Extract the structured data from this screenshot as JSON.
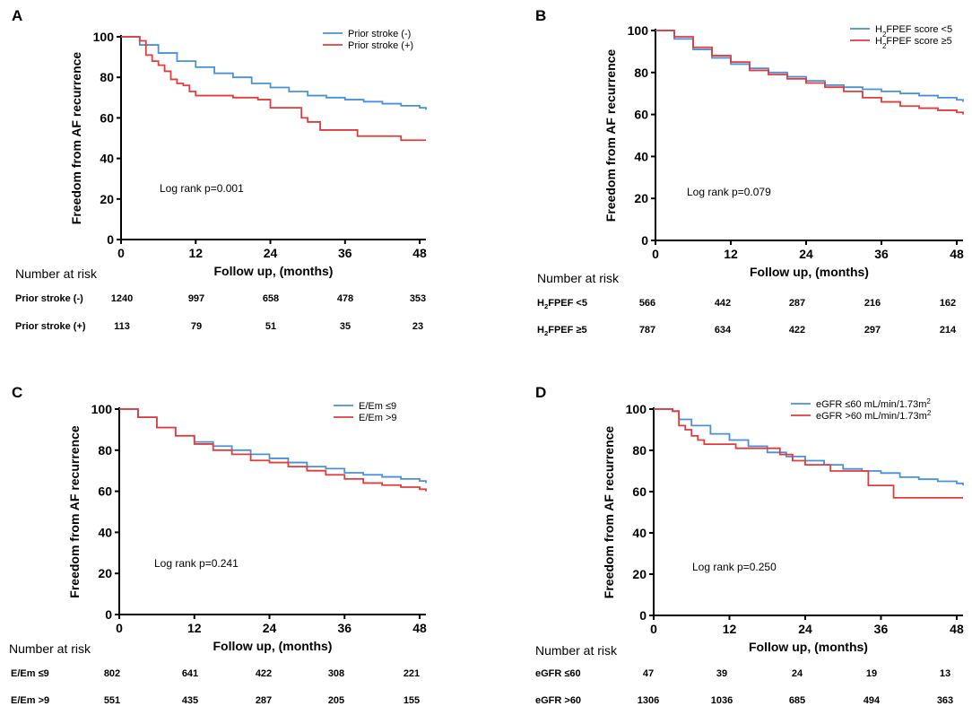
{
  "chart_data": [
    {
      "type": "line",
      "panel": "A",
      "title": "",
      "xlabel": "Follow up, (months)",
      "ylabel": "Freedom from AF recurrence",
      "xlim": [
        0,
        49
      ],
      "ylim": [
        0,
        100
      ],
      "xticks": [
        0,
        12,
        24,
        36,
        48
      ],
      "yticks": [
        0,
        20,
        40,
        60,
        80,
        100
      ],
      "legend_position": "top-right",
      "annotation": "Log rank p=0.001",
      "series": [
        {
          "name": "Prior stroke (-)",
          "color": "#4a90d9",
          "x": [
            0,
            3,
            6,
            9,
            12,
            15,
            18,
            21,
            24,
            27,
            30,
            33,
            36,
            39,
            42,
            45,
            48,
            49
          ],
          "y": [
            100,
            96,
            92,
            88,
            85,
            82,
            80,
            77,
            75,
            73,
            71,
            70,
            69,
            68,
            67,
            66,
            65,
            64
          ]
        },
        {
          "name": "Prior stroke (+)",
          "color": "#e03c3c",
          "x": [
            0,
            3,
            4,
            5,
            6,
            7,
            8,
            9,
            10,
            11,
            12,
            18,
            22,
            24,
            28,
            29,
            30,
            32,
            36,
            38,
            40,
            45,
            49
          ],
          "y": [
            100,
            98,
            91,
            88,
            86,
            83,
            79,
            77,
            76,
            73,
            71,
            70,
            69,
            65,
            65,
            60,
            58,
            54,
            54,
            51,
            51,
            49,
            49
          ]
        }
      ],
      "risk_header": "Number at risk",
      "risk_rows": [
        {
          "label": "Prior stroke (-)",
          "values": [
            "1240",
            "997",
            "658",
            "478",
            "353"
          ]
        },
        {
          "label": "Prior stroke (+)",
          "values": [
            "113",
            "79",
            "51",
            "35",
            "23"
          ]
        }
      ]
    },
    {
      "type": "line",
      "panel": "B",
      "title": "",
      "xlabel": "Follow up, (months)",
      "ylabel": "Freedom from AF recurrence",
      "xlim": [
        0,
        49
      ],
      "ylim": [
        0,
        100
      ],
      "xticks": [
        0,
        12,
        24,
        36,
        48
      ],
      "yticks": [
        0,
        20,
        40,
        60,
        80,
        100
      ],
      "legend_position": "top-right",
      "annotation": "Log rank p=0.079",
      "series": [
        {
          "name": "H2FPEF score <5",
          "color": "#4a90d9",
          "x": [
            0,
            3,
            6,
            9,
            12,
            15,
            18,
            21,
            24,
            27,
            30,
            33,
            36,
            39,
            42,
            45,
            48,
            49
          ],
          "y": [
            100,
            96,
            91,
            87,
            84,
            82,
            80,
            78,
            76,
            74,
            73,
            72,
            71,
            70,
            69,
            68,
            67,
            66
          ]
        },
        {
          "name": "H2FPEF score ≥5",
          "color": "#e03c3c",
          "x": [
            0,
            3,
            6,
            9,
            12,
            15,
            18,
            21,
            24,
            27,
            30,
            33,
            36,
            39,
            42,
            45,
            48,
            49
          ],
          "y": [
            100,
            97,
            92,
            88,
            85,
            81,
            79,
            77,
            75,
            73,
            71,
            68,
            66,
            64,
            63,
            62,
            61,
            60
          ]
        }
      ],
      "risk_header": "Number at risk",
      "risk_rows": [
        {
          "label": "H2FPEF <5",
          "values": [
            "566",
            "442",
            "287",
            "216",
            "162"
          ]
        },
        {
          "label": "H2FPEF ≥5",
          "values": [
            "787",
            "634",
            "422",
            "297",
            "214"
          ]
        }
      ]
    },
    {
      "type": "line",
      "panel": "C",
      "title": "",
      "xlabel": "Follow up, (months)",
      "ylabel": "Freedom from AF recurrence",
      "xlim": [
        0,
        49
      ],
      "ylim": [
        0,
        100
      ],
      "xticks": [
        0,
        12,
        24,
        36,
        48
      ],
      "yticks": [
        0,
        20,
        40,
        60,
        80,
        100
      ],
      "legend_position": "top-right",
      "annotation": "Log rank p=0.241",
      "series": [
        {
          "name": "E/Em ≤9",
          "color": "#4a90d9",
          "x": [
            0,
            3,
            6,
            9,
            12,
            15,
            18,
            21,
            24,
            27,
            30,
            33,
            36,
            39,
            42,
            45,
            48,
            49
          ],
          "y": [
            100,
            96,
            91,
            87,
            84,
            82,
            80,
            78,
            76,
            74,
            72,
            71,
            69,
            68,
            67,
            66,
            65,
            64
          ]
        },
        {
          "name": "E/Em >9",
          "color": "#e03c3c",
          "x": [
            0,
            3,
            6,
            9,
            12,
            15,
            18,
            21,
            24,
            27,
            30,
            33,
            36,
            39,
            42,
            45,
            48,
            49
          ],
          "y": [
            100,
            96,
            91,
            87,
            83,
            80,
            78,
            75,
            74,
            72,
            70,
            68,
            66,
            64,
            63,
            62,
            61,
            60
          ]
        }
      ],
      "risk_header": "Number at risk",
      "risk_rows": [
        {
          "label": "E/Em ≤9",
          "values": [
            "802",
            "641",
            "422",
            "308",
            "221"
          ]
        },
        {
          "label": "E/Em >9",
          "values": [
            "551",
            "435",
            "287",
            "205",
            "155"
          ]
        }
      ]
    },
    {
      "type": "line",
      "panel": "D",
      "title": "",
      "xlabel": "Follow up, (months)",
      "ylabel": "Freedom from AF recurrence",
      "xlim": [
        0,
        49
      ],
      "ylim": [
        0,
        100
      ],
      "xticks": [
        0,
        12,
        24,
        36,
        48
      ],
      "yticks": [
        0,
        20,
        40,
        60,
        80,
        100
      ],
      "legend_position": "top-right",
      "annotation": "Log rank p=0.250",
      "series": [
        {
          "name": "eGFR ≤60 mL/min/1.73m2",
          "color": "#4a90d9",
          "x": [
            0,
            3,
            4,
            6,
            9,
            12,
            15,
            18,
            21,
            24,
            27,
            30,
            33,
            36,
            39,
            42,
            45,
            48,
            49
          ],
          "y": [
            100,
            99,
            95,
            92,
            88,
            85,
            82,
            79,
            77,
            75,
            73,
            71,
            70,
            69,
            67,
            66,
            65,
            64,
            63
          ]
        },
        {
          "name": "eGFR >60 mL/min/1.73m2",
          "color": "#e03c3c",
          "x": [
            0,
            3,
            4,
            5,
            6,
            7,
            8,
            13,
            18,
            20,
            22,
            24,
            28,
            30,
            34,
            38,
            49
          ],
          "y": [
            100,
            99,
            92,
            90,
            87,
            85,
            83,
            81,
            81,
            78,
            75,
            73,
            70,
            70,
            63,
            57,
            57
          ]
        }
      ],
      "risk_header": "Number at risk",
      "risk_rows": [
        {
          "label": "eGFR ≤60",
          "values": [
            "47",
            "39",
            "24",
            "19",
            "13"
          ]
        },
        {
          "label": "eGFR >60",
          "values": [
            "1306",
            "1036",
            "685",
            "494",
            "363"
          ]
        }
      ]
    }
  ],
  "colors": {
    "blue": "#4a90d9",
    "red": "#e03c3c",
    "axis": "#000000"
  }
}
